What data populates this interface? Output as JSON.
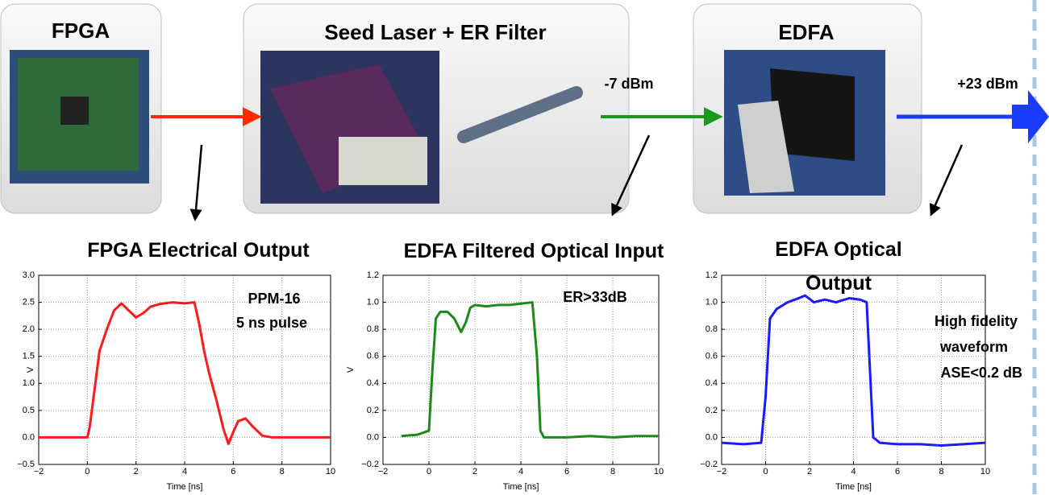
{
  "nodes": [
    {
      "label": "FPGA"
    },
    {
      "label": "Seed Laser + ER Filter"
    },
    {
      "label": "EDFA"
    }
  ],
  "links": [
    {
      "label": "-7 dBm"
    },
    {
      "label": "+23 dBm"
    }
  ],
  "chart_data": [
    {
      "type": "line",
      "title": "FPGA Electrical Output",
      "xlabel": "Time [ns]",
      "ylabel": "V",
      "annotations": [
        "PPM-16",
        "5 ns pulse"
      ],
      "x": [
        -2,
        -1,
        0,
        0.1,
        0.3,
        0.5,
        0.8,
        1.1,
        1.4,
        1.7,
        2.0,
        2.3,
        2.6,
        3.0,
        3.5,
        4.0,
        4.4,
        4.6,
        4.8,
        5.0,
        5.3,
        5.6,
        5.8,
        6.0,
        6.2,
        6.5,
        6.8,
        7.2,
        7.6,
        8,
        9,
        10
      ],
      "series": [
        {
          "color": "#ff1a1a",
          "values": [
            0,
            0,
            0,
            0.2,
            0.9,
            1.6,
            2.0,
            2.35,
            2.48,
            2.35,
            2.22,
            2.3,
            2.42,
            2.47,
            2.5,
            2.48,
            2.5,
            2.1,
            1.6,
            1.2,
            0.7,
            0.15,
            -0.12,
            0.1,
            0.3,
            0.35,
            0.2,
            0.03,
            0,
            0,
            0,
            0
          ]
        }
      ],
      "xlim": [
        -2,
        10
      ],
      "xticks": [
        {
          "value": -2,
          "label": "−2"
        },
        0,
        2,
        4,
        6,
        8,
        10
      ],
      "ylim": [
        -0.5,
        3.0
      ],
      "yticks": [
        {
          "value": -0.5,
          "label": "−0.5"
        },
        {
          "value": 0,
          "label": "0.0"
        },
        0.5,
        {
          "value": 1,
          "label": "1.0"
        },
        1.5,
        {
          "value": 2,
          "label": "2.0"
        },
        2.5,
        {
          "value": 3,
          "label": "3.0"
        }
      ],
      "grid": true
    },
    {
      "type": "line",
      "title": "EDFA Filtered Optical Input",
      "xlabel": "Time [ns]",
      "ylabel": "V",
      "annotations": [
        "ER>33dB"
      ],
      "x": [
        -1.2,
        -0.5,
        0,
        0.15,
        0.3,
        0.5,
        0.8,
        1.1,
        1.4,
        1.6,
        1.8,
        2.0,
        2.5,
        3,
        3.5,
        4,
        4.5,
        4.7,
        4.85,
        5.0,
        5.5,
        6,
        7,
        8,
        9,
        10
      ],
      "series": [
        {
          "color": "#1a8a1a",
          "values": [
            0.01,
            0.02,
            0.05,
            0.5,
            0.88,
            0.93,
            0.93,
            0.88,
            0.78,
            0.85,
            0.96,
            0.98,
            0.97,
            0.98,
            0.98,
            0.99,
            1.0,
            0.6,
            0.05,
            0,
            0,
            0,
            0.01,
            0,
            0.01,
            0.01
          ]
        }
      ],
      "xlim": [
        -2,
        10
      ],
      "xticks": [
        {
          "value": -2,
          "label": "−2"
        },
        0,
        2,
        4,
        6,
        8,
        10
      ],
      "ylim": [
        -0.2,
        1.2
      ],
      "yticks": [
        {
          "value": -0.2,
          "label": "−0.2"
        },
        {
          "value": 0,
          "label": "0.0"
        },
        0.2,
        0.4,
        0.6,
        0.8,
        {
          "value": 1,
          "label": "1.0"
        },
        1.2
      ],
      "grid": true
    },
    {
      "type": "line",
      "title": "EDFA Optical Output",
      "xlabel": "Time [ns]",
      "annotations": [
        "High fidelity",
        "waveform",
        "ASE<0.2 dB"
      ],
      "x": [
        -2,
        -1,
        -0.2,
        0,
        0.2,
        0.5,
        1,
        1.5,
        1.8,
        2.2,
        2.7,
        3.2,
        3.8,
        4.3,
        4.6,
        4.75,
        4.9,
        5.2,
        6,
        7,
        8,
        9,
        10
      ],
      "series": [
        {
          "color": "#1a1aff",
          "values": [
            -0.04,
            -0.05,
            -0.04,
            0.3,
            0.88,
            0.95,
            1.0,
            1.03,
            1.05,
            1.0,
            1.02,
            1.0,
            1.03,
            1.02,
            1.0,
            0.5,
            0.0,
            -0.04,
            -0.05,
            -0.05,
            -0.06,
            -0.05,
            -0.04
          ]
        }
      ],
      "xlim": [
        -2,
        10
      ],
      "xticks": [
        {
          "value": -2,
          "label": "−2"
        },
        0,
        2,
        4,
        6,
        8,
        10
      ],
      "ylim": [
        -0.2,
        1.2
      ],
      "yticks": [
        {
          "value": -0.2,
          "label": "−0.2"
        },
        {
          "value": 0,
          "label": "0.0"
        },
        0.2,
        0.4,
        0.6,
        0.8,
        {
          "value": 1,
          "label": "1.0"
        },
        1.2
      ],
      "grid": true
    }
  ]
}
